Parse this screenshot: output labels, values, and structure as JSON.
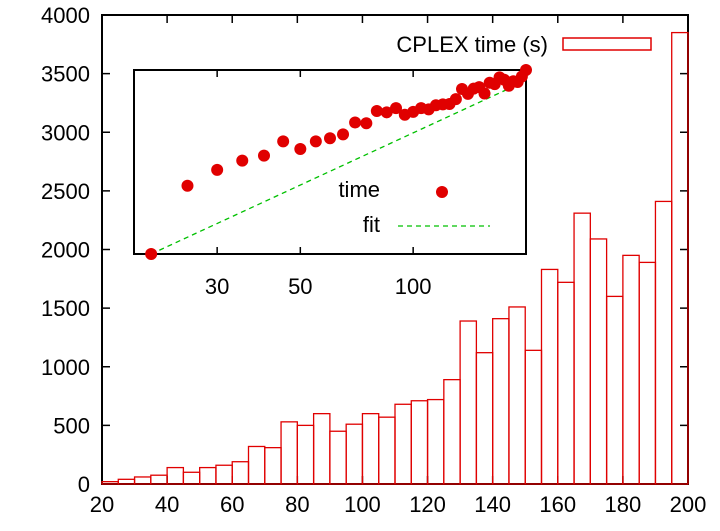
{
  "chart_data": [
    {
      "type": "bar",
      "title": "",
      "xlabel": "",
      "ylabel": "",
      "xlim": [
        20,
        200
      ],
      "ylim": [
        0,
        4000
      ],
      "xticks": [
        20,
        40,
        60,
        80,
        100,
        120,
        140,
        160,
        180,
        200
      ],
      "yticks": [
        0,
        500,
        1000,
        1500,
        2000,
        2500,
        3000,
        3500,
        4000
      ],
      "bin_width": 5,
      "legend_position": "top-right",
      "series": [
        {
          "name": "CPLEX time (s)",
          "color": "#e00000",
          "bin_start": [
            15,
            20,
            25,
            30,
            35,
            40,
            45,
            50,
            55,
            60,
            65,
            70,
            75,
            80,
            85,
            90,
            95,
            100,
            105,
            110,
            115,
            120,
            125,
            130,
            135,
            140,
            145,
            150,
            155,
            160,
            165,
            170,
            175,
            180,
            185,
            190,
            195
          ],
          "values": [
            0,
            20,
            40,
            60,
            75,
            140,
            100,
            140,
            160,
            190,
            320,
            310,
            530,
            500,
            600,
            450,
            510,
            600,
            570,
            680,
            710,
            720,
            890,
            1390,
            1120,
            1410,
            1510,
            1140,
            1830,
            1720,
            2310,
            2090,
            1600,
            1950,
            1890,
            2410,
            3850
          ]
        }
      ]
    },
    {
      "type": "scatter",
      "title": "",
      "xlabel": "",
      "ylabel": "",
      "xscale": "log",
      "yscale": "log",
      "xlim": [
        18,
        200
      ],
      "ylim": [
        1,
        3200
      ],
      "xticks": [
        30,
        50,
        100
      ],
      "legend_position": "center-right",
      "series": [
        {
          "name": "time",
          "mode": "markers",
          "color": "#e00000",
          "x": [
            20,
            25,
            30,
            35,
            40,
            45,
            50,
            55,
            60,
            65,
            70,
            75,
            80,
            85,
            90,
            95,
            100,
            105,
            110,
            115,
            120,
            125,
            130,
            135,
            140,
            145,
            150,
            155,
            160,
            165,
            170,
            175,
            180,
            185,
            190,
            195,
            200
          ],
          "y": [
            1,
            20,
            40,
            60,
            75,
            140,
            100,
            140,
            160,
            190,
            320,
            310,
            530,
            500,
            600,
            450,
            510,
            600,
            570,
            680,
            710,
            720,
            890,
            1390,
            1120,
            1410,
            1510,
            1140,
            1830,
            1720,
            2310,
            2090,
            1600,
            1950,
            1890,
            2410,
            3850
          ]
        },
        {
          "name": "fit",
          "mode": "line",
          "style": "dashed",
          "color": "#00c000",
          "x": [
            20,
            200
          ],
          "y": [
            1,
            2000
          ]
        }
      ]
    }
  ]
}
